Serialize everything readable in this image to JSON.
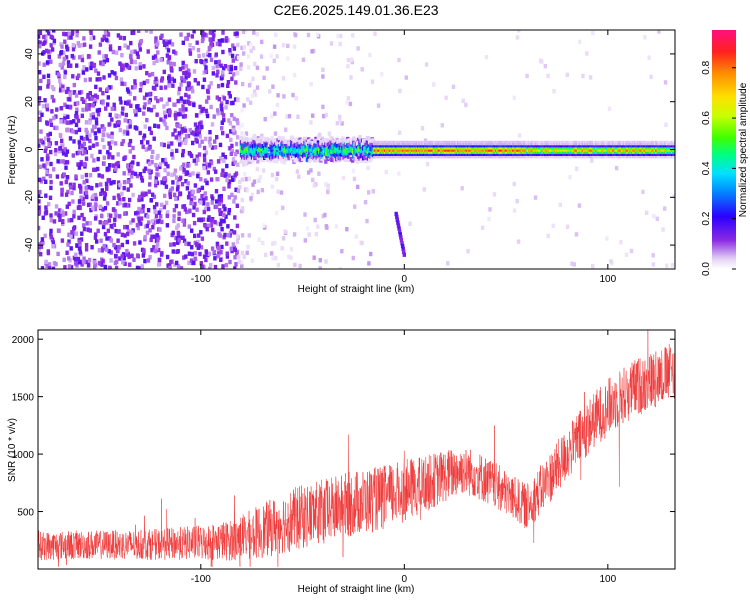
{
  "title": "C2E6.2025.149.01.36.E23",
  "chart_data": [
    {
      "type": "heatmap",
      "title": "C2E6.2025.149.01.36.E23",
      "xlabel": "Height of straight line (km)",
      "ylabel": "Frequency (Hz)",
      "xlim": [
        -180,
        133
      ],
      "ylim": [
        -50,
        50
      ],
      "x_ticks": [
        -100,
        0,
        100
      ],
      "y_ticks": [
        -40,
        -20,
        0,
        20,
        40
      ],
      "x_tick_labels": [
        "-100",
        "0",
        "100"
      ],
      "y_tick_labels": [
        "-40",
        "-20",
        "0",
        "20",
        "40"
      ],
      "colorbar": {
        "label": "Normalized spectral amplitude",
        "range": [
          0,
          0.95
        ],
        "ticks": [
          0.0,
          0.2,
          0.4,
          0.6,
          0.8
        ],
        "tick_labels": [
          "0.0",
          "0.2",
          "0.4",
          "0.6",
          "0.8"
        ],
        "colors": [
          "#ffffff",
          "#e6d6f6",
          "#8a2be2",
          "#2a00ff",
          "#0090ff",
          "#00e0ff",
          "#00ff80",
          "#40ff00",
          "#c8ff00",
          "#ffe000",
          "#ff8c00",
          "#ff2020",
          "#ff1080"
        ]
      },
      "features": {
        "noise_region_x": [
          -180,
          -82
        ],
        "noise_amplitude": 0.15,
        "carrier_line": {
          "x": [
            -80,
            133
          ],
          "freq": 0,
          "peak_amplitude": 0.85
        },
        "sparse_region_x": [
          -82,
          -15
        ],
        "diagonal_streak": {
          "x": [
            -4,
            0
          ],
          "freq": [
            -27,
            -44
          ]
        }
      }
    },
    {
      "type": "line",
      "xlabel": "Height of straight line (km)",
      "ylabel": "SNR (10 * v/v)",
      "xlim": [
        -180,
        133
      ],
      "ylim": [
        0,
        2080
      ],
      "x_ticks": [
        -100,
        0,
        100
      ],
      "y_ticks": [
        500,
        1000,
        1500,
        2000
      ],
      "x_tick_labels": [
        "-100",
        "0",
        "100"
      ],
      "y_tick_labels": [
        "500",
        "1000",
        "1500",
        "2000"
      ],
      "color": "#ef3535",
      "series": [
        {
          "x": [
            -180,
            -160,
            -140,
            -120,
            -100,
            -85,
            -70,
            -55,
            -40,
            -25,
            -10,
            0,
            10,
            20,
            28,
            35,
            45,
            55,
            60,
            65,
            75,
            85,
            95,
            105,
            115,
            125,
            133
          ],
          "values": [
            200,
            210,
            210,
            215,
            230,
            250,
            330,
            430,
            500,
            570,
            620,
            680,
            740,
            810,
            860,
            830,
            720,
            600,
            540,
            640,
            880,
            1120,
            1330,
            1480,
            1590,
            1670,
            1730
          ],
          "noise_amplitude": [
            150,
            150,
            150,
            160,
            180,
            210,
            280,
            330,
            330,
            340,
            330,
            320,
            290,
            270,
            250,
            250,
            240,
            230,
            230,
            250,
            270,
            280,
            290,
            300,
            300,
            300,
            300
          ]
        }
      ]
    }
  ]
}
